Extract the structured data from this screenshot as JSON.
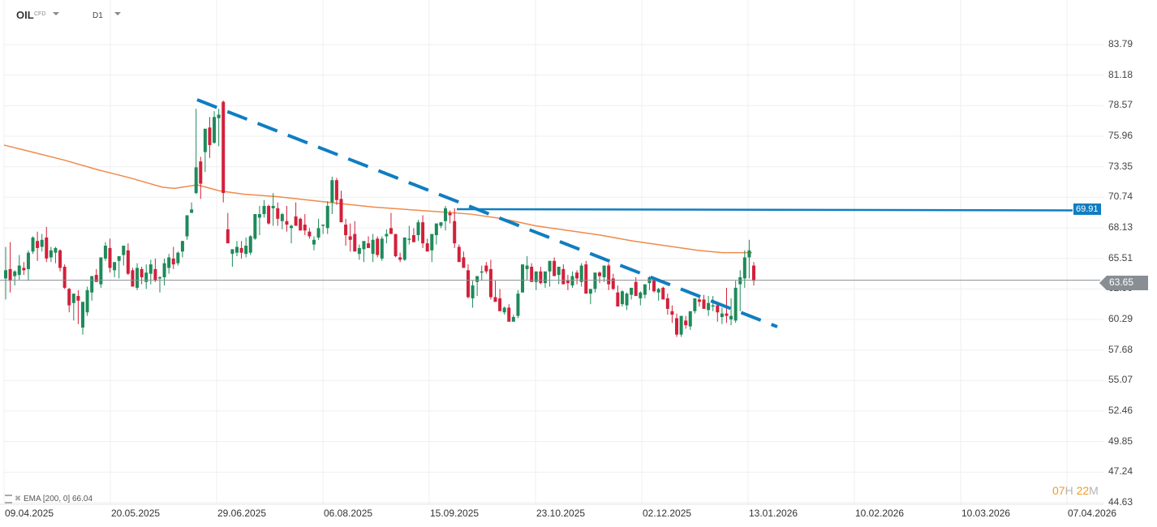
{
  "header": {
    "symbol": "OIL",
    "symbol_type": "CFD",
    "timeframe": "D1"
  },
  "legend": {
    "indicator": "EMA [200,  0] 66.04"
  },
  "timer": {
    "hours": "07",
    "h": "H",
    "minutes": "22",
    "m": "M"
  },
  "price_tags": {
    "current": "63.65",
    "level": "69.91"
  },
  "colors": {
    "up": "#1e8a5a",
    "down": "#d3203a",
    "ema": "#f08a4b",
    "line": "#0f7dc2",
    "current": "#888e93"
  },
  "chart_data": {
    "type": "candlestick",
    "title": "OIL CFD D1",
    "yaxis_ticks": [
      "83.79",
      "81.18",
      "78.57",
      "75.96",
      "73.35",
      "70.74",
      "68.13",
      "65.51",
      "62.90",
      "60.29",
      "57.68",
      "55.07",
      "52.46",
      "49.85",
      "47.24",
      "44.63"
    ],
    "xaxis_ticks": [
      "09.04.2025",
      "20.05.2025",
      "29.06.2025",
      "06.08.2025",
      "15.09.2025",
      "23.10.2025",
      "02.12.2025",
      "13.01.2026",
      "10.02.2026",
      "10.03.2026",
      "07.04.2026"
    ],
    "ylim": [
      44.63,
      83.79
    ],
    "current_price": 63.65,
    "horizontal_level": 69.91,
    "ema_200_last": 66.04,
    "trendline": {
      "from": {
        "date": "~02.06.2025",
        "price": 79.0
      },
      "to": {
        "date": "~20.01.2026",
        "price": 60.0
      },
      "style": "dashed"
    },
    "ema_points": [
      [
        5,
        75.2
      ],
      [
        40,
        74.6
      ],
      [
        80,
        73.9
      ],
      [
        120,
        73.1
      ],
      [
        160,
        72.4
      ],
      [
        200,
        71.6
      ],
      [
        215,
        71.5
      ],
      [
        243,
        71.8
      ],
      [
        270,
        71.3
      ],
      [
        300,
        71.0
      ],
      [
        340,
        70.8
      ],
      [
        380,
        70.5
      ],
      [
        420,
        70.2
      ],
      [
        460,
        69.9
      ],
      [
        500,
        69.7
      ],
      [
        540,
        69.5
      ],
      [
        580,
        69.3
      ],
      [
        620,
        68.9
      ],
      [
        660,
        68.3
      ],
      [
        700,
        67.9
      ],
      [
        740,
        67.5
      ],
      [
        780,
        67.0
      ],
      [
        820,
        66.6
      ],
      [
        860,
        66.2
      ],
      [
        890,
        66.0
      ],
      [
        927,
        66.0
      ]
    ],
    "candles": [
      [
        63.8,
        66.5,
        62.0,
        64.5
      ],
      [
        64.6,
        66.9,
        62.6,
        63.6
      ],
      [
        64.0,
        64.5,
        63.2,
        64.4
      ],
      [
        64.1,
        65.8,
        63.7,
        64.9
      ],
      [
        64.7,
        65.2,
        64.1,
        64.5
      ],
      [
        64.6,
        66.2,
        63.6,
        66.0
      ],
      [
        66.1,
        67.4,
        65.9,
        67.3
      ],
      [
        67.0,
        67.8,
        65.3,
        66.4
      ],
      [
        66.5,
        67.6,
        66.1,
        67.1
      ],
      [
        67.3,
        68.2,
        65.2,
        65.5
      ],
      [
        65.6,
        66.5,
        65.2,
        66.2
      ],
      [
        66.0,
        66.5,
        65.1,
        66.4
      ],
      [
        66.2,
        66.3,
        64.4,
        64.7
      ],
      [
        64.8,
        65.0,
        62.9,
        63.0
      ],
      [
        62.9,
        63.0,
        60.9,
        61.5
      ],
      [
        61.7,
        62.2,
        60.2,
        62.5
      ],
      [
        62.3,
        62.8,
        59.9,
        61.9
      ],
      [
        59.6,
        61.7,
        59.0,
        61.8
      ],
      [
        60.9,
        63.1,
        60.6,
        62.8
      ],
      [
        62.6,
        64.0,
        61.9,
        64.0
      ],
      [
        64.1,
        64.6,
        63.6,
        63.5
      ],
      [
        63.3,
        64.5,
        63.0,
        65.6
      ],
      [
        65.5,
        66.9,
        65.3,
        66.6
      ],
      [
        66.4,
        67.2,
        64.3,
        64.7
      ],
      [
        64.5,
        65.1,
        63.9,
        65.2
      ],
      [
        65.3,
        65.5,
        63.8,
        65.7
      ],
      [
        65.8,
        66.5,
        64.9,
        66.6
      ],
      [
        66.2,
        66.8,
        64.1,
        64.2
      ],
      [
        64.5,
        64.7,
        63.2,
        63.1
      ],
      [
        63.0,
        65.1,
        62.8,
        64.7
      ],
      [
        64.6,
        64.8,
        63.3,
        63.9
      ],
      [
        63.5,
        65.0,
        62.9,
        64.3
      ],
      [
        64.2,
        65.4,
        63.3,
        65.0
      ],
      [
        64.6,
        65.5,
        63.5,
        63.6
      ],
      [
        63.8,
        64.0,
        62.6,
        63.9
      ],
      [
        63.9,
        65.5,
        63.2,
        65.1
      ],
      [
        64.7,
        65.9,
        64.2,
        65.6
      ],
      [
        65.5,
        66.5,
        64.6,
        65.0
      ],
      [
        65.1,
        66.1,
        64.9,
        66.0
      ],
      [
        66.1,
        67.0,
        65.6,
        67.0
      ],
      [
        67.4,
        69.1,
        67.1,
        69.2
      ],
      [
        69.4,
        70.3,
        69.5,
        69.7
      ],
      [
        71.1,
        78.3,
        71.0,
        73.3
      ],
      [
        73.8,
        74.2,
        70.6,
        71.9
      ],
      [
        74.6,
        75.5,
        72.9,
        76.6
      ],
      [
        76.7,
        77.6,
        74.1,
        75.2
      ],
      [
        75.4,
        78.1,
        75.3,
        77.6
      ],
      [
        77.5,
        78.3,
        75.1,
        77.8
      ],
      [
        78.9,
        79.0,
        70.3,
        71.1
      ],
      [
        68.0,
        69.4,
        66.8,
        66.8
      ],
      [
        65.9,
        66.1,
        64.8,
        66.3
      ],
      [
        66.0,
        67.0,
        65.7,
        66.5
      ],
      [
        66.4,
        67.0,
        65.5,
        66.0
      ],
      [
        65.9,
        67.3,
        65.6,
        66.6
      ],
      [
        66.0,
        67.5,
        65.8,
        67.4
      ],
      [
        67.2,
        69.3,
        67.1,
        69.3
      ],
      [
        69.0,
        70.0,
        67.5,
        69.3
      ],
      [
        69.3,
        70.5,
        69.0,
        70.0
      ],
      [
        70.0,
        70.1,
        68.4,
        68.5
      ],
      [
        69.8,
        71.1,
        68.3,
        70.0
      ],
      [
        69.8,
        70.3,
        68.3,
        68.9
      ],
      [
        68.7,
        69.4,
        68.0,
        69.3
      ],
      [
        68.7,
        70.0,
        67.8,
        68.4
      ],
      [
        68.1,
        68.4,
        66.8,
        68.3
      ],
      [
        69.1,
        70.3,
        68.7,
        68.3
      ],
      [
        68.9,
        69.0,
        67.9,
        67.9
      ],
      [
        68.4,
        69.3,
        67.5,
        67.9
      ],
      [
        67.8,
        68.1,
        67.2,
        67.4
      ],
      [
        66.7,
        67.4,
        66.2,
        67.1
      ],
      [
        67.3,
        68.9,
        67.1,
        68.1
      ],
      [
        68.3,
        68.4,
        67.6,
        68.4
      ],
      [
        68.1,
        70.4,
        67.6,
        70.0
      ],
      [
        70.3,
        72.5,
        69.3,
        72.2
      ],
      [
        72.2,
        72.4,
        70.1,
        70.5
      ],
      [
        70.6,
        71.3,
        68.7,
        68.6
      ],
      [
        68.4,
        68.9,
        66.6,
        67.5
      ],
      [
        67.4,
        68.5,
        66.1,
        67.1
      ],
      [
        67.6,
        68.7,
        66.3,
        66.1
      ],
      [
        65.9,
        66.7,
        65.4,
        66.4
      ],
      [
        66.3,
        66.7,
        65.2,
        67.0
      ],
      [
        66.8,
        67.4,
        66.5,
        66.4
      ],
      [
        65.9,
        67.6,
        65.2,
        67.1
      ],
      [
        67.2,
        67.4,
        65.6,
        65.8
      ],
      [
        65.5,
        67.4,
        65.3,
        67.2
      ],
      [
        67.4,
        68.0,
        66.8,
        67.6
      ],
      [
        68.1,
        69.4,
        67.8,
        67.6
      ],
      [
        67.6,
        67.6,
        65.6,
        65.7
      ],
      [
        65.6,
        66.0,
        65.2,
        65.4
      ],
      [
        65.4,
        67.3,
        65.3,
        67.3
      ],
      [
        67.2,
        68.3,
        66.7,
        67.2
      ],
      [
        67.5,
        68.1,
        66.9,
        66.9
      ],
      [
        67.5,
        68.8,
        67.0,
        68.6
      ],
      [
        68.6,
        69.2,
        66.4,
        66.8
      ],
      [
        66.8,
        67.2,
        66.2,
        66.1
      ],
      [
        66.2,
        66.8,
        65.2,
        67.6
      ],
      [
        67.5,
        68.5,
        66.7,
        68.5
      ],
      [
        68.3,
        68.6,
        68.1,
        68.6
      ],
      [
        68.7,
        70.0,
        67.9,
        69.8
      ],
      [
        69.4,
        69.6,
        68.5,
        69.2
      ],
      [
        68.7,
        69.8,
        66.4,
        66.8
      ],
      [
        66.5,
        66.7,
        65.4,
        65.2
      ],
      [
        65.6,
        66.1,
        64.9,
        64.7
      ],
      [
        64.5,
        65.0,
        62.1,
        62.2
      ],
      [
        62.1,
        63.6,
        61.3,
        63.2
      ],
      [
        63.5,
        63.9,
        62.3,
        64.0
      ],
      [
        64.3,
        64.9,
        63.6,
        64.4
      ],
      [
        64.9,
        65.2,
        64.2,
        64.4
      ],
      [
        64.6,
        65.4,
        62.0,
        62.2
      ],
      [
        62.2,
        63.6,
        61.8,
        61.8
      ],
      [
        62.1,
        62.9,
        62.0,
        61.0
      ],
      [
        60.9,
        61.4,
        60.7,
        61.3
      ],
      [
        61.3,
        61.6,
        60.6,
        60.1
      ],
      [
        60.1,
        60.7,
        60.2,
        60.5
      ],
      [
        60.6,
        62.8,
        60.4,
        62.5
      ],
      [
        62.6,
        63.8,
        62.6,
        65.0
      ],
      [
        64.6,
        65.7,
        63.7,
        64.9
      ],
      [
        64.8,
        65.1,
        63.7,
        63.5
      ],
      [
        63.5,
        64.2,
        62.8,
        64.4
      ],
      [
        64.4,
        64.8,
        63.3,
        63.4
      ],
      [
        63.4,
        64.1,
        63.0,
        64.4
      ],
      [
        64.4,
        65.3,
        63.1,
        65.3
      ],
      [
        65.3,
        65.6,
        64.3,
        64.0
      ],
      [
        64.1,
        64.7,
        63.3,
        64.8
      ],
      [
        64.6,
        65.0,
        63.5,
        63.3
      ],
      [
        63.6,
        64.1,
        62.8,
        63.4
      ],
      [
        63.2,
        64.4,
        63.0,
        64.0
      ],
      [
        64.3,
        64.5,
        63.3,
        63.8
      ],
      [
        63.5,
        65.1,
        63.1,
        64.9
      ],
      [
        65.0,
        65.3,
        62.6,
        62.5
      ],
      [
        62.5,
        62.9,
        61.6,
        62.9
      ],
      [
        62.9,
        64.3,
        62.6,
        64.3
      ],
      [
        64.3,
        64.4,
        63.4,
        64.0
      ],
      [
        63.9,
        64.9,
        63.5,
        64.9
      ],
      [
        64.9,
        65.1,
        62.8,
        63.3
      ],
      [
        63.8,
        64.2,
        62.8,
        62.9
      ],
      [
        62.6,
        63.2,
        62.0,
        61.4
      ],
      [
        61.6,
        62.8,
        61.4,
        62.7
      ],
      [
        61.5,
        62.6,
        61.1,
        62.5
      ],
      [
        62.4,
        63.0,
        62.0,
        63.0
      ],
      [
        63.5,
        63.9,
        62.6,
        62.3
      ],
      [
        62.1,
        62.7,
        61.5,
        62.6
      ],
      [
        62.4,
        62.9,
        62.1,
        63.3
      ],
      [
        63.4,
        64.0,
        62.8,
        63.9
      ],
      [
        63.8,
        63.9,
        62.6,
        62.7
      ],
      [
        62.6,
        63.0,
        61.9,
        62.9
      ],
      [
        63.0,
        63.1,
        62.2,
        62.0
      ],
      [
        62.1,
        62.5,
        60.7,
        61.2
      ],
      [
        61.0,
        61.5,
        60.0,
        60.7
      ],
      [
        60.4,
        60.8,
        58.8,
        59.0
      ],
      [
        59.0,
        60.4,
        58.8,
        60.6
      ],
      [
        60.2,
        60.6,
        59.5,
        59.8
      ],
      [
        59.7,
        60.3,
        59.4,
        61.0
      ],
      [
        61.0,
        62.0,
        60.8,
        62.1
      ],
      [
        62.0,
        62.3,
        61.4,
        61.8
      ],
      [
        62.0,
        62.4,
        61.5,
        61.2
      ],
      [
        61.1,
        62.3,
        60.6,
        61.7
      ],
      [
        61.4,
        62.3,
        61.0,
        61.5
      ],
      [
        61.5,
        61.7,
        60.1,
        60.9
      ],
      [
        60.5,
        61.3,
        59.9,
        60.8
      ],
      [
        60.8,
        63.0,
        60.0,
        60.6
      ],
      [
        60.3,
        62.1,
        59.8,
        60.6
      ],
      [
        60.2,
        63.6,
        60.0,
        63.0
      ],
      [
        63.3,
        64.5,
        61.0,
        63.9
      ],
      [
        63.8,
        66.2,
        63.0,
        65.6
      ],
      [
        65.6,
        67.1,
        63.8,
        66.2
      ],
      [
        64.9,
        65.2,
        63.2,
        63.6
      ]
    ]
  }
}
